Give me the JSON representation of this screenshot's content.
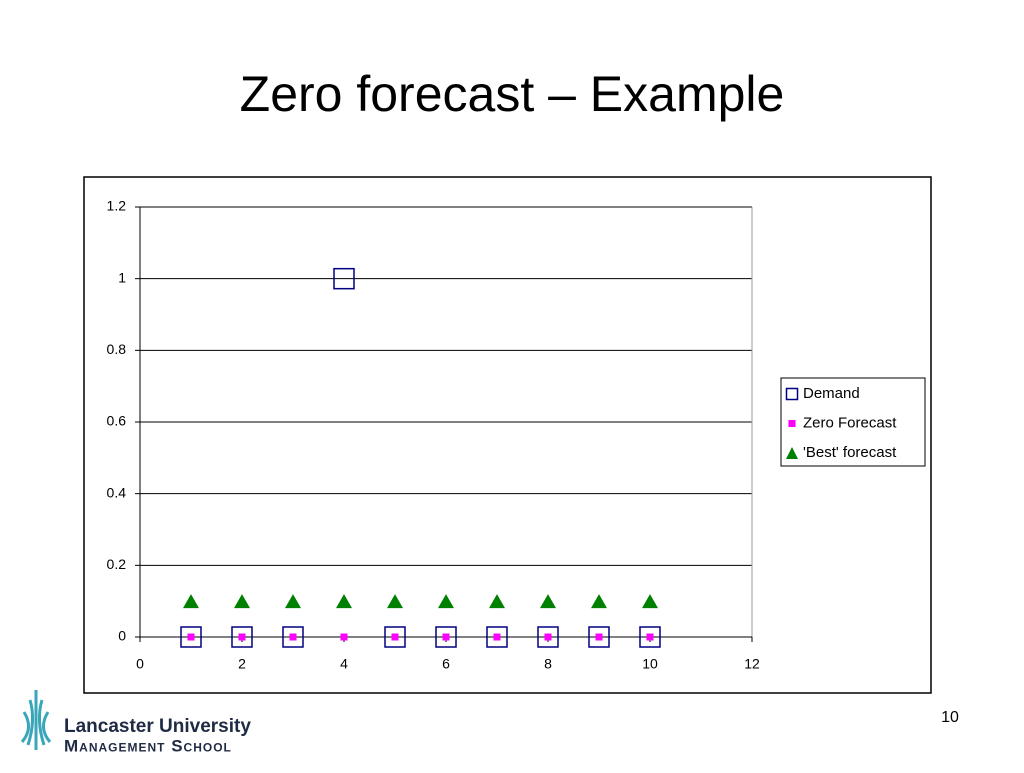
{
  "slide": {
    "title": "Zero forecast – Example",
    "page_number": 10,
    "logo_line1": "Lancaster University",
    "logo_line2": "Management School"
  },
  "chart_data": {
    "type": "scatter",
    "x": [
      1,
      2,
      3,
      4,
      5,
      6,
      7,
      8,
      9,
      10
    ],
    "series": [
      {
        "name": "Demand",
        "color": "#000080",
        "marker": "open-square",
        "values": [
          0,
          0,
          0,
          1,
          0,
          0,
          0,
          0,
          0,
          0
        ]
      },
      {
        "name": "Zero Forecast",
        "color": "#ff00ff",
        "marker": "square",
        "values": [
          0,
          0,
          0,
          0,
          0,
          0,
          0,
          0,
          0,
          0
        ]
      },
      {
        "name": "'Best' forecast",
        "color": "#008000",
        "marker": "triangle",
        "values": [
          0.1,
          0.1,
          0.1,
          0.1,
          0.1,
          0.1,
          0.1,
          0.1,
          0.1,
          0.1
        ]
      }
    ],
    "xlim": [
      0,
      12
    ],
    "xticks": [
      0,
      2,
      4,
      6,
      8,
      10,
      12
    ],
    "ylim": [
      0,
      1.2
    ],
    "yticks": [
      0,
      0.2,
      0.4,
      0.6,
      0.8,
      1,
      1.2
    ],
    "grid": true,
    "legend": "right"
  }
}
